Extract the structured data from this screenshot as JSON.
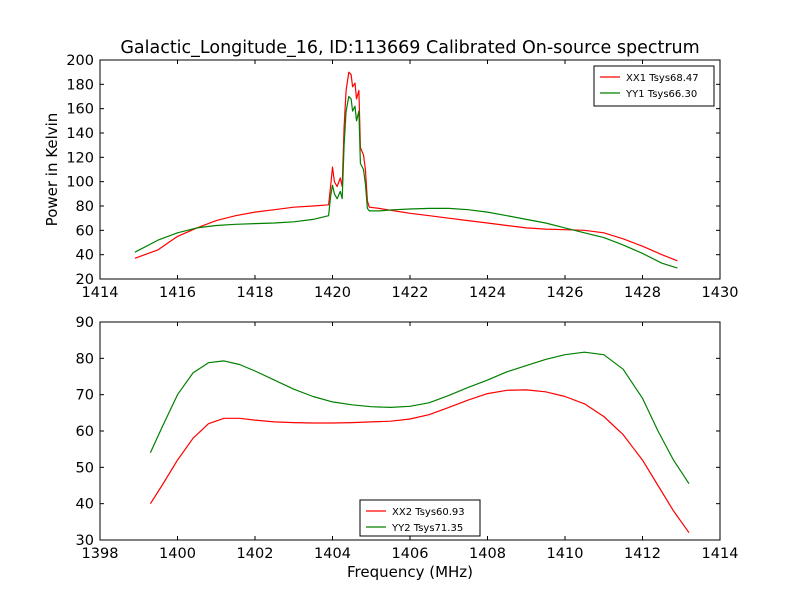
{
  "figure": {
    "title": "Galactic_Longitude_16, ID:113669 Calibrated On-source spectrum",
    "xlabel": "Frequency (MHz)"
  },
  "chart_data": [
    {
      "type": "line",
      "ylabel": "Power in Kelvin",
      "xlim": [
        1414,
        1430
      ],
      "ylim": [
        20,
        200
      ],
      "xticks": [
        1414,
        1416,
        1418,
        1420,
        1422,
        1424,
        1426,
        1428,
        1430
      ],
      "yticks": [
        20,
        40,
        60,
        80,
        100,
        120,
        140,
        160,
        180,
        200
      ],
      "grid": false,
      "legend_position": "top-right",
      "series": [
        {
          "name": "XX1 Tsys68.47",
          "color": "#ff0000",
          "x": [
            1414.9,
            1415.5,
            1416.0,
            1416.5,
            1417.0,
            1417.5,
            1418.0,
            1418.5,
            1419.0,
            1419.5,
            1419.9,
            1419.95,
            1420.0,
            1420.05,
            1420.12,
            1420.2,
            1420.25,
            1420.3,
            1420.35,
            1420.42,
            1420.48,
            1420.52,
            1420.58,
            1420.62,
            1420.68,
            1420.72,
            1420.8,
            1420.85,
            1420.9,
            1420.95,
            1421.2,
            1421.6,
            1422.0,
            1422.5,
            1423.0,
            1423.5,
            1424.0,
            1424.5,
            1425.0,
            1425.5,
            1426.0,
            1426.5,
            1427.0,
            1427.5,
            1428.0,
            1428.5,
            1428.9
          ],
          "y": [
            37,
            44,
            55,
            62,
            68,
            72,
            75,
            77,
            79,
            80,
            81,
            96,
            112,
            100,
            96,
            103,
            96,
            145,
            175,
            190,
            188,
            178,
            181,
            168,
            175,
            128,
            122,
            110,
            84,
            79,
            78,
            76,
            74,
            72,
            70,
            68,
            66,
            64,
            62,
            61,
            60.5,
            60,
            58,
            53,
            47,
            40,
            35
          ]
        },
        {
          "name": "YY1 Tsys66.30",
          "color": "#008000",
          "x": [
            1414.9,
            1415.5,
            1416.0,
            1416.5,
            1417.0,
            1417.5,
            1418.0,
            1418.5,
            1419.0,
            1419.5,
            1419.9,
            1419.95,
            1420.0,
            1420.05,
            1420.12,
            1420.2,
            1420.25,
            1420.3,
            1420.35,
            1420.42,
            1420.48,
            1420.52,
            1420.58,
            1420.62,
            1420.68,
            1420.72,
            1420.8,
            1420.85,
            1420.9,
            1420.95,
            1421.2,
            1421.6,
            1422.0,
            1422.5,
            1423.0,
            1423.5,
            1424.0,
            1424.5,
            1425.0,
            1425.5,
            1426.0,
            1426.5,
            1427.0,
            1427.5,
            1428.0,
            1428.5,
            1428.9
          ],
          "y": [
            42,
            52,
            58,
            62,
            64,
            65,
            65.5,
            66,
            67,
            69,
            72,
            88,
            97,
            90,
            86,
            92,
            86,
            130,
            158,
            170,
            168,
            158,
            162,
            150,
            158,
            115,
            110,
            98,
            78,
            76,
            76,
            77,
            77.5,
            78,
            78,
            77,
            75,
            72,
            69,
            66,
            62,
            58,
            54,
            48,
            41,
            33,
            29
          ]
        }
      ]
    },
    {
      "type": "line",
      "ylabel": "",
      "xlim": [
        1398,
        1414
      ],
      "ylim": [
        30,
        90
      ],
      "xticks": [
        1398,
        1400,
        1402,
        1404,
        1406,
        1408,
        1410,
        1412,
        1414
      ],
      "yticks": [
        30,
        40,
        50,
        60,
        70,
        80,
        90
      ],
      "grid": false,
      "legend_position": "bottom-center",
      "series": [
        {
          "name": "XX2 Tsys60.93",
          "color": "#ff0000",
          "x": [
            1399.3,
            1399.6,
            1400.0,
            1400.4,
            1400.8,
            1401.2,
            1401.6,
            1402.0,
            1402.5,
            1403.0,
            1403.5,
            1404.0,
            1404.5,
            1405.0,
            1405.5,
            1406.0,
            1406.5,
            1407.0,
            1407.5,
            1408.0,
            1408.5,
            1409.0,
            1409.5,
            1410.0,
            1410.5,
            1411.0,
            1411.5,
            1412.0,
            1412.4,
            1412.8,
            1413.2
          ],
          "y": [
            40,
            45,
            52,
            58,
            62,
            63.5,
            63.5,
            63,
            62.5,
            62.3,
            62.2,
            62.2,
            62.3,
            62.5,
            62.7,
            63.3,
            64.5,
            66.5,
            68.5,
            70.3,
            71.2,
            71.3,
            70.8,
            69.5,
            67.5,
            64,
            59,
            52,
            45,
            38,
            32
          ]
        },
        {
          "name": "YY2 Tsys71.35",
          "color": "#008000",
          "x": [
            1399.3,
            1399.6,
            1400.0,
            1400.4,
            1400.8,
            1401.2,
            1401.6,
            1402.0,
            1402.5,
            1403.0,
            1403.5,
            1404.0,
            1404.5,
            1405.0,
            1405.5,
            1406.0,
            1406.5,
            1407.0,
            1407.5,
            1408.0,
            1408.5,
            1409.0,
            1409.5,
            1410.0,
            1410.5,
            1411.0,
            1411.5,
            1412.0,
            1412.4,
            1412.8,
            1413.2
          ],
          "y": [
            54,
            61,
            70,
            76,
            78.8,
            79.3,
            78.3,
            76.5,
            74,
            71.5,
            69.5,
            68,
            67.2,
            66.7,
            66.5,
            66.8,
            67.8,
            69.8,
            72,
            74,
            76.3,
            78,
            79.7,
            81,
            81.7,
            81,
            77,
            69,
            60,
            52,
            45.5
          ]
        }
      ]
    }
  ]
}
